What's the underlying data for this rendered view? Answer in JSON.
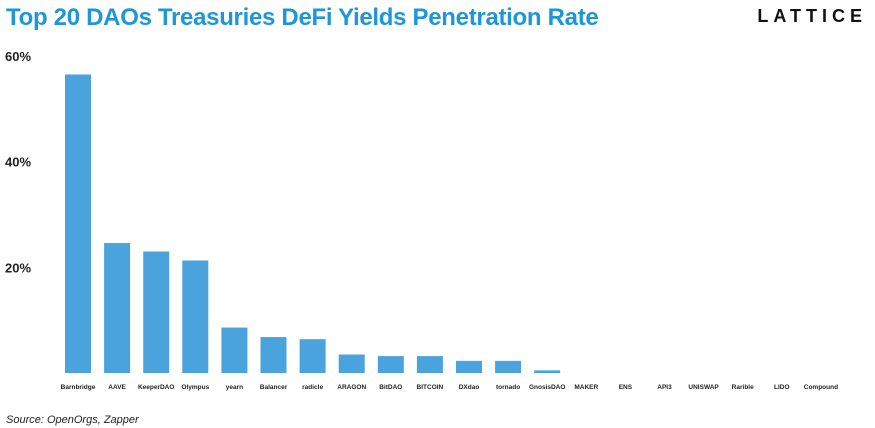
{
  "header": {
    "title": "Top 20 DAOs Treasuries DeFi Yields Penetration Rate",
    "brand": "LATTICE"
  },
  "footer": {
    "source": "Source: OpenOrgs, Zapper"
  },
  "colors": {
    "title": "#1d97d6",
    "bar": "#4aa3dc"
  },
  "chart_data": {
    "type": "bar",
    "title": "Top 20 DAOs Treasuries DeFi Yields Penetration Rate",
    "xlabel": "",
    "ylabel": "",
    "ylim": [
      0,
      62
    ],
    "yticks": [
      "20%",
      "40%",
      "60%"
    ],
    "ytick_values": [
      20,
      40,
      60
    ],
    "grid": false,
    "categories": [
      "Barnbridge",
      "AAVE",
      "KeeperDAO",
      "Olympus",
      "yearn",
      "Balancer",
      "radicle",
      "ARAGON",
      "BitDAO",
      "BITCOIN",
      "DXdao",
      "tornado",
      "GnosisDAO",
      "MAKER",
      "ENS",
      "API3",
      "UNISWAP",
      "Rarible",
      "LIDO",
      "Compound"
    ],
    "values": [
      56.5,
      24.6,
      23.0,
      21.3,
      8.6,
      6.8,
      6.4,
      3.5,
      3.2,
      3.2,
      2.3,
      2.3,
      0.5,
      0,
      0,
      0,
      0,
      0,
      0,
      0
    ]
  }
}
